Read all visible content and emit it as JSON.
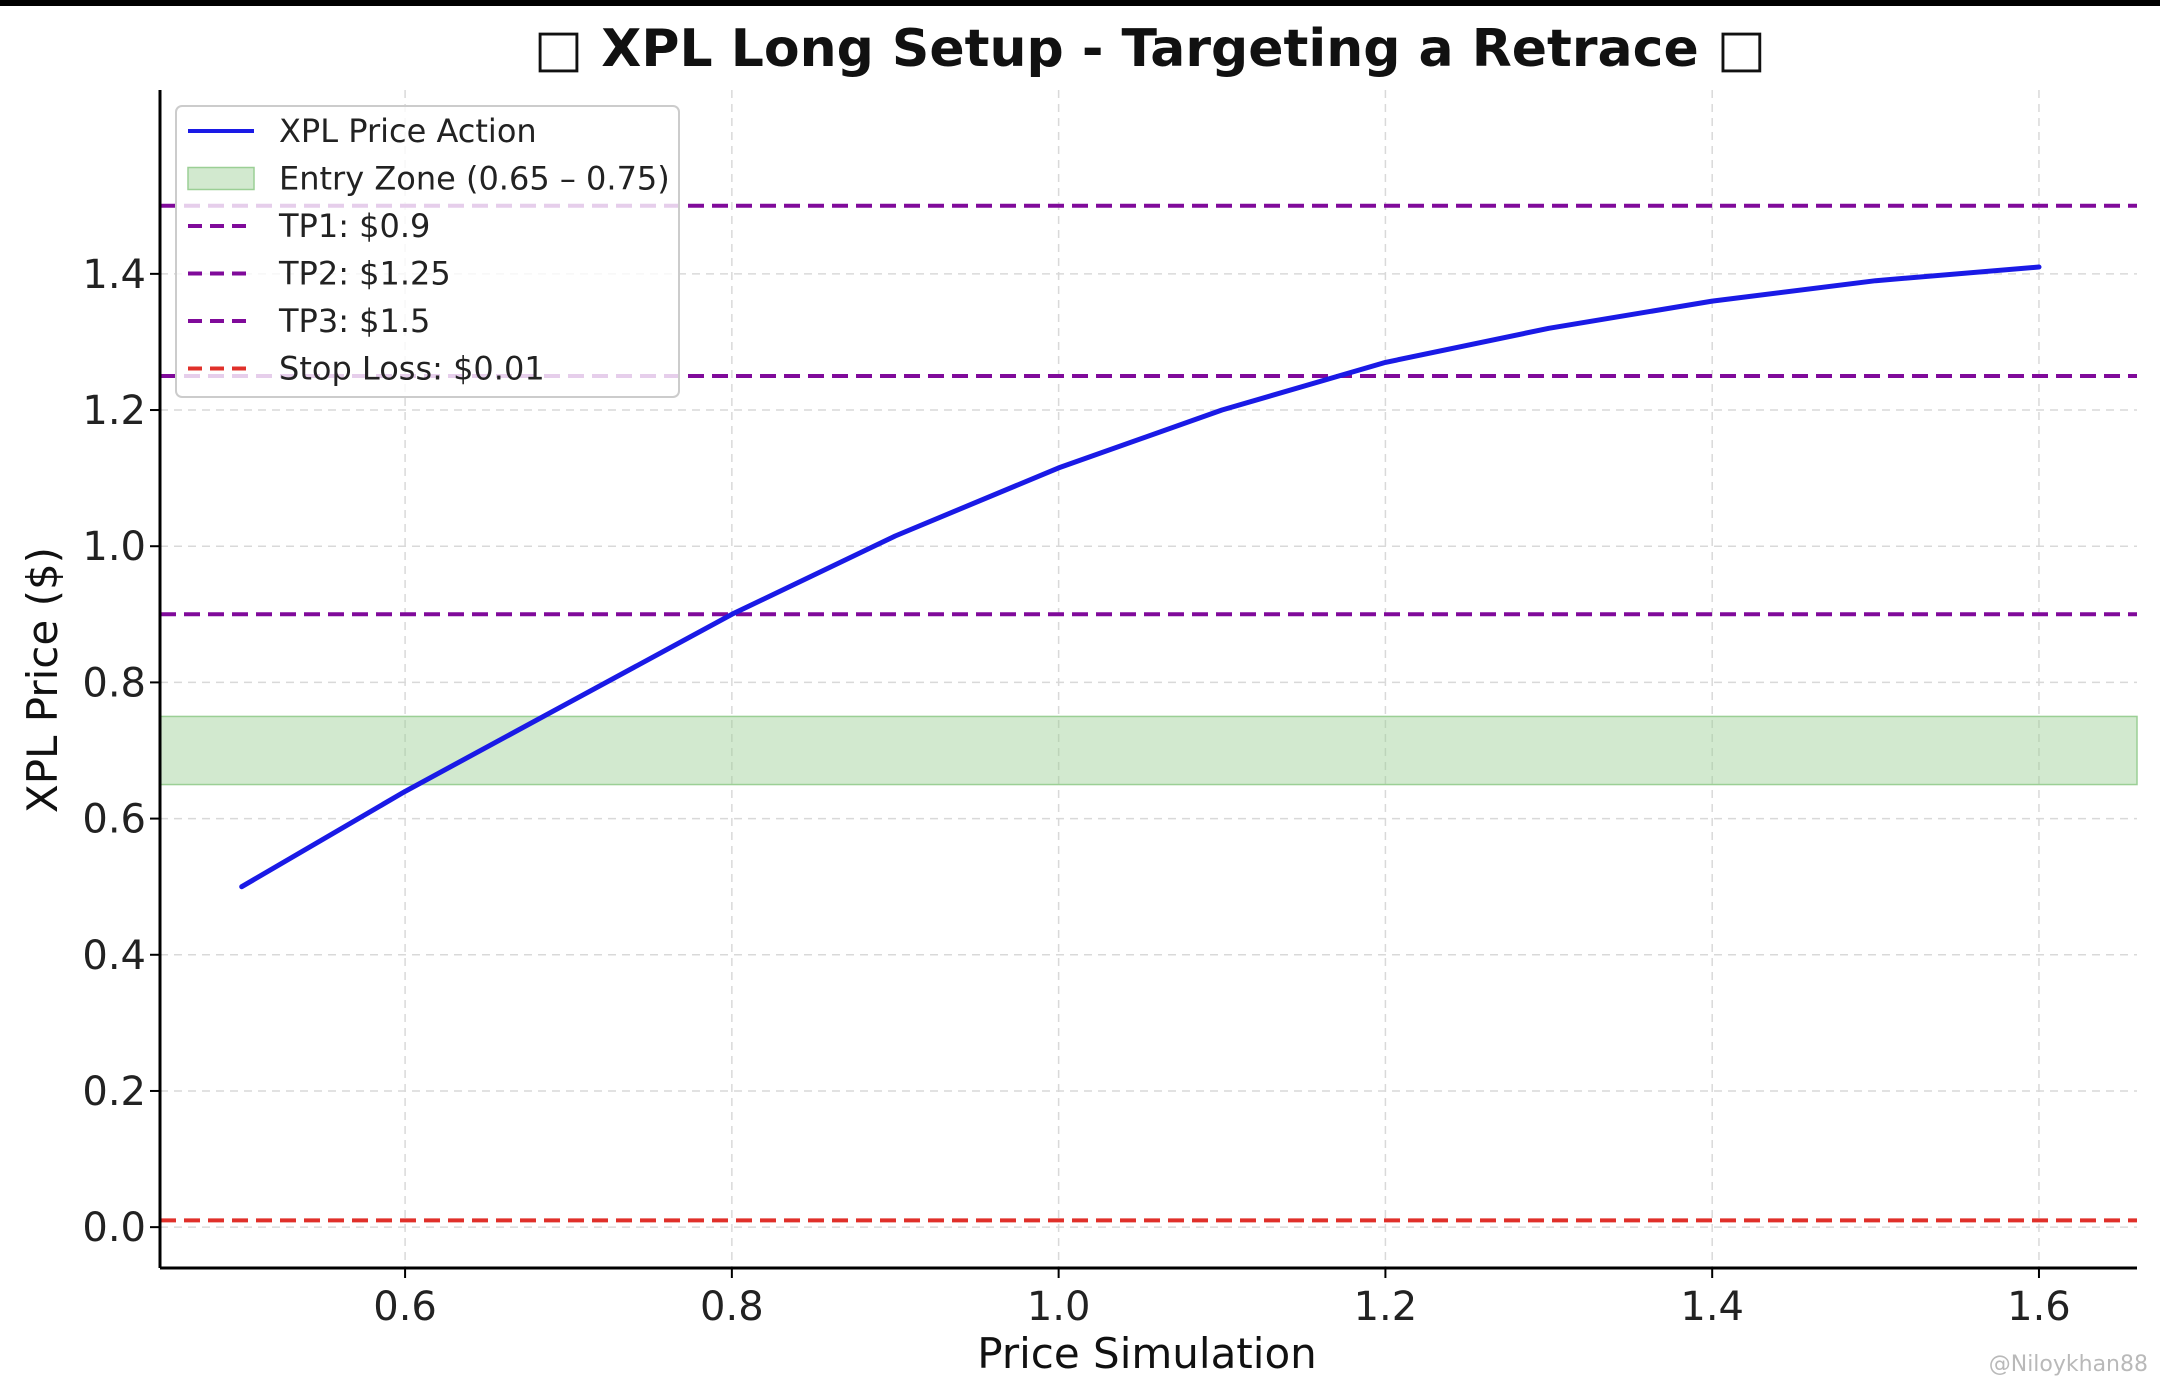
{
  "chart_data": {
    "type": "line",
    "title": "□ XPL Long Setup - Targeting a Retrace □",
    "xlabel": "Price Simulation",
    "ylabel": "XPL Price ($)",
    "xlim": [
      0.45,
      1.66
    ],
    "ylim": [
      -0.06,
      1.67
    ],
    "xticks": [
      0.6,
      0.8,
      1.0,
      1.2,
      1.4,
      1.6
    ],
    "yticks": [
      0.0,
      0.2,
      0.4,
      0.6,
      0.8,
      1.0,
      1.2,
      1.4
    ],
    "xtick_labels": [
      "0.6",
      "0.8",
      "1.0",
      "1.2",
      "1.4",
      "1.6"
    ],
    "ytick_labels": [
      "0.0",
      "0.2",
      "0.4",
      "0.6",
      "0.8",
      "1.0",
      "1.2",
      "1.4"
    ],
    "grid": true,
    "legend_position": "top-left",
    "series": [
      {
        "name": "XPL Price Action",
        "color": "#1a1ae6",
        "x": [
          0.5,
          0.6,
          0.7,
          0.8,
          0.9,
          1.0,
          1.1,
          1.2,
          1.3,
          1.4,
          1.5,
          1.6
        ],
        "y": [
          0.5,
          0.64,
          0.77,
          0.9,
          1.015,
          1.115,
          1.2,
          1.27,
          1.32,
          1.36,
          1.39,
          1.41
        ]
      }
    ],
    "zones": [
      {
        "name": "Entry Zone (0.65 – 0.75)",
        "ymin": 0.65,
        "ymax": 0.75,
        "color": "#9bcf95"
      }
    ],
    "hlines": [
      {
        "name": "TP1: $0.9",
        "y": 0.9,
        "color": "#800a9a"
      },
      {
        "name": "TP2: $1.25",
        "y": 1.25,
        "color": "#800a9a"
      },
      {
        "name": "TP3: $1.5",
        "y": 1.5,
        "color": "#800a9a"
      },
      {
        "name": "Stop Loss: $0.01",
        "y": 0.01,
        "color": "#e0302a"
      }
    ]
  },
  "watermark": "@Niloykhan88"
}
